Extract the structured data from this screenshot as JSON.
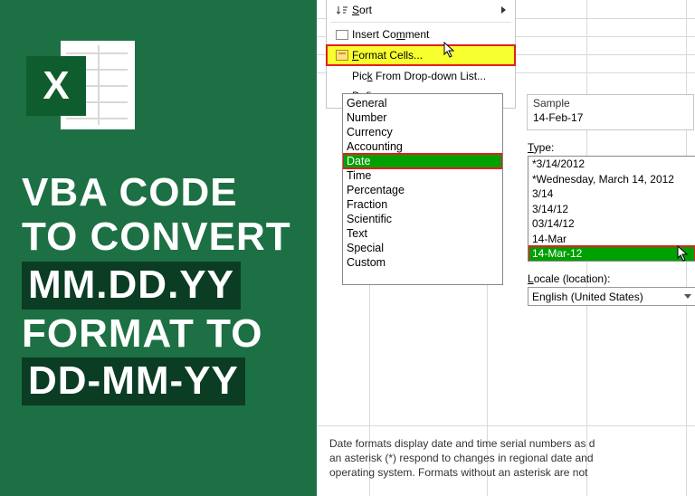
{
  "colors": {
    "left_bg": "#1d7044",
    "dark_accent": "#0b3d24",
    "highlight_yellow": "#f8ff2e",
    "highlight_green": "#00a000",
    "highlight_red_border": "#e02020"
  },
  "logo": {
    "letter": "X"
  },
  "headline": {
    "line1": "VBA CODE",
    "line2": "TO CONVERT",
    "accent1": "MM.DD.YY",
    "line3": "FORMAT TO",
    "accent2": "DD-MM-YY"
  },
  "context_menu": {
    "sort": "Sort",
    "insert_comment": "Insert Comment",
    "format_cells": "Format Cells...",
    "pick_list": "Pick From Drop-down List...",
    "define": "Define"
  },
  "categories": {
    "items": [
      "General",
      "Number",
      "Currency",
      "Accounting",
      "Date",
      "Time",
      "Percentage",
      "Fraction",
      "Scientific",
      "Text",
      "Special",
      "Custom"
    ],
    "selected_index": 4
  },
  "sample": {
    "label": "Sample",
    "value": "14-Feb-17"
  },
  "type": {
    "label": "Type:",
    "items": [
      "*3/14/2012",
      "*Wednesday, March 14, 2012",
      "3/14",
      "3/14/12",
      "03/14/12",
      "14-Mar",
      "14-Mar-12"
    ],
    "selected_index": 6
  },
  "locale": {
    "label": "Locale (location):",
    "value": "English (United States)"
  },
  "description": {
    "line1": "Date formats display date and time serial numbers as d",
    "line2": "an asterisk (*) respond to changes in regional date and",
    "line3": "operating system. Formats without an asterisk are not"
  }
}
